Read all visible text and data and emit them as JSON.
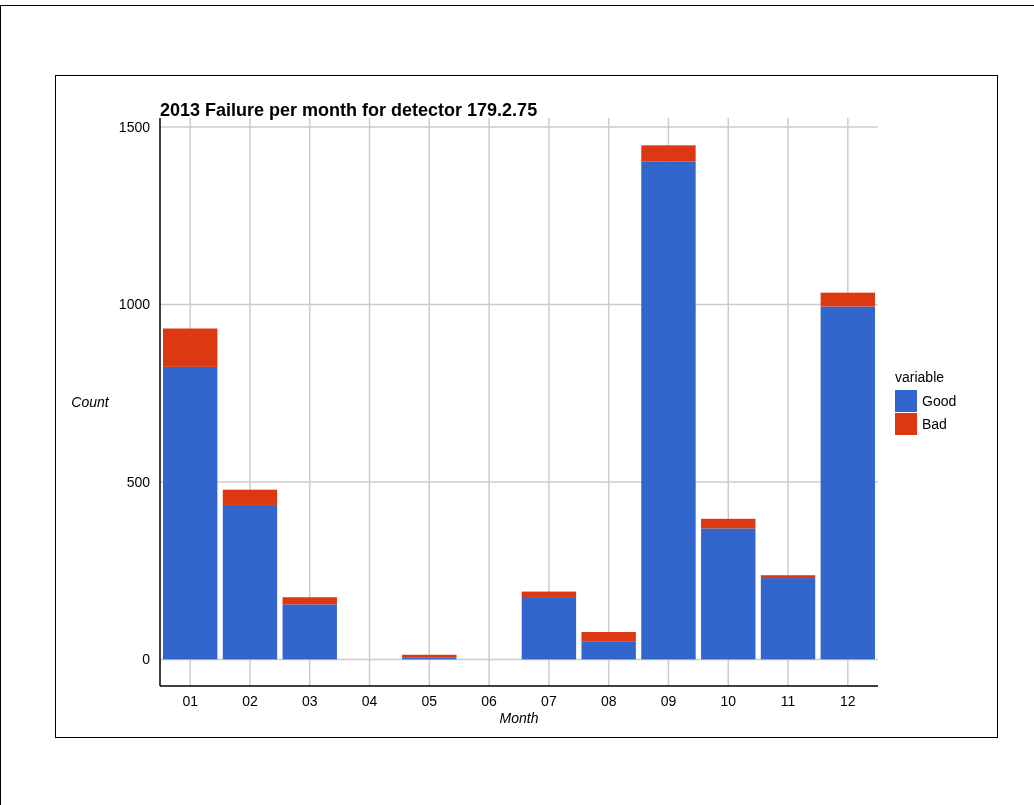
{
  "chart_data": {
    "type": "bar",
    "title": "2013 Failure per month for detector 179.2.75",
    "xlabel": "Month",
    "ylabel": "Count",
    "legend_title": "variable",
    "categories": [
      "01",
      "02",
      "03",
      "04",
      "05",
      "06",
      "07",
      "08",
      "09",
      "10",
      "11",
      "12"
    ],
    "stacked": true,
    "series": [
      {
        "name": "Good",
        "color": "#3366cc",
        "values": [
          824,
          435,
          155,
          0,
          6,
          0,
          173,
          51,
          1402,
          369,
          229,
          994
        ]
      },
      {
        "name": "Bad",
        "color": "#dc3912",
        "values": [
          108,
          43,
          20,
          0,
          7,
          0,
          18,
          26,
          46,
          27,
          8,
          39
        ]
      }
    ],
    "ylim": [
      -75,
      1525
    ],
    "yticks": [
      0,
      500,
      1000,
      1500
    ],
    "grid": true,
    "legend": "right"
  }
}
